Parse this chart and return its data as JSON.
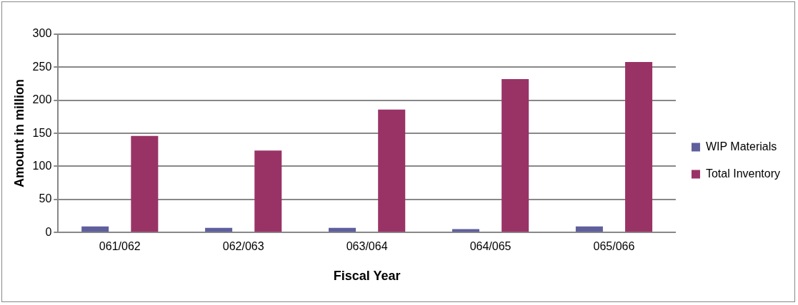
{
  "chart_data": {
    "type": "bar",
    "xlabel": "Fiscal Year",
    "ylabel": "Amount in million",
    "categories": [
      "061/062",
      "062/063",
      "063/064",
      "064/065",
      "065/066"
    ],
    "series": [
      {
        "name": "WIP Materials",
        "color": "#5f5f9e",
        "values": [
          9,
          7,
          7,
          5,
          9
        ]
      },
      {
        "name": "Total Inventory",
        "color": "#993366",
        "values": [
          146,
          124,
          186,
          232,
          258
        ]
      }
    ],
    "ylim": [
      0,
      300
    ],
    "yticks": [
      0,
      50,
      100,
      150,
      200,
      250,
      300
    ],
    "grid": "y",
    "legend": "right"
  }
}
